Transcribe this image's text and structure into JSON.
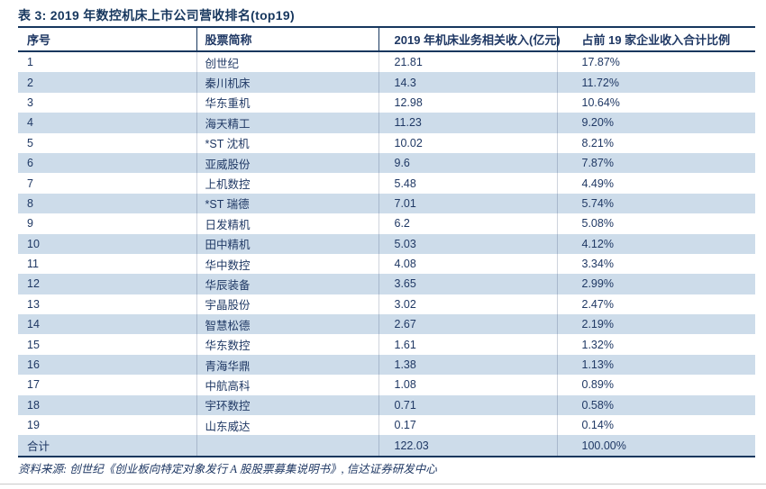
{
  "table": {
    "title": "表 3: 2019 年数控机床上市公司营收排名(top19)",
    "columns": [
      "序号",
      "股票简称",
      "2019 年机床业务相关收入(亿元)",
      "占前 19 家企业收入合计比例"
    ],
    "rows": [
      [
        "1",
        "创世纪",
        "21.81",
        "17.87%"
      ],
      [
        "2",
        "秦川机床",
        "14.3",
        "11.72%"
      ],
      [
        "3",
        "华东重机",
        "12.98",
        "10.64%"
      ],
      [
        "4",
        "海天精工",
        "11.23",
        "9.20%"
      ],
      [
        "5",
        "*ST 沈机",
        "10.02",
        "8.21%"
      ],
      [
        "6",
        "亚威股份",
        "9.6",
        "7.87%"
      ],
      [
        "7",
        "上机数控",
        "5.48",
        "4.49%"
      ],
      [
        "8",
        "*ST 瑞德",
        "7.01",
        "5.74%"
      ],
      [
        "9",
        "日发精机",
        "6.2",
        "5.08%"
      ],
      [
        "10",
        "田中精机",
        "5.03",
        "4.12%"
      ],
      [
        "11",
        "华中数控",
        "4.08",
        "3.34%"
      ],
      [
        "12",
        "华辰装备",
        "3.65",
        "2.99%"
      ],
      [
        "13",
        "宇晶股份",
        "3.02",
        "2.47%"
      ],
      [
        "14",
        "智慧松德",
        "2.67",
        "2.19%"
      ],
      [
        "15",
        "华东数控",
        "1.61",
        "1.32%"
      ],
      [
        "16",
        "青海华鼎",
        "1.38",
        "1.13%"
      ],
      [
        "17",
        "中航高科",
        "1.08",
        "0.89%"
      ],
      [
        "18",
        "宇环数控",
        "0.71",
        "0.58%"
      ],
      [
        "19",
        "山东威达",
        "0.17",
        "0.14%"
      ]
    ],
    "total_row": [
      "合计",
      "",
      "122.03",
      "100.00%"
    ],
    "source": "资料来源: 创世纪《创业板向特定对象发行 A 股股票募集说明书》, 信达证券研发中心"
  },
  "colors": {
    "accent_navy": "#17375E",
    "text_navy": "#1F3864",
    "row_stripe": "#CDDCEA",
    "bottom_rule_gray": "#C9C9C9"
  }
}
